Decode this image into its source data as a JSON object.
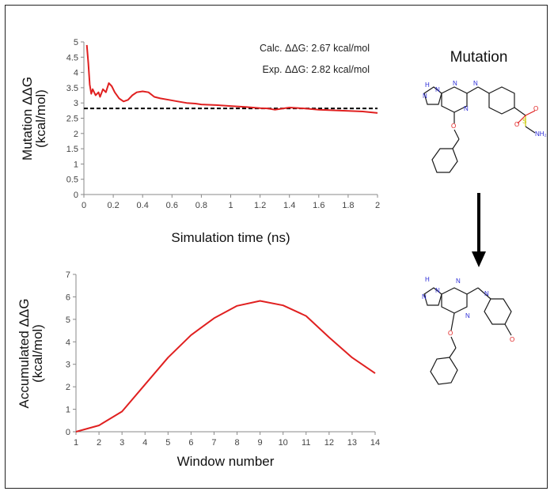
{
  "chart_data": [
    {
      "type": "line",
      "xlabel": "Simulation time (ns)",
      "ylabel": [
        "Mutation ΔΔG",
        "(kcal/mol)"
      ],
      "xlim": [
        0,
        2
      ],
      "ylim": [
        0,
        5
      ],
      "xticks": [
        "0",
        "0.2",
        "0.4",
        "0.6",
        "0.8",
        "1",
        "1.2",
        "1.4",
        "1.6",
        "1.8",
        "2"
      ],
      "yticks": [
        "0",
        "0.5",
        "1",
        "1.5",
        "2",
        "2.5",
        "3",
        "3.5",
        "4",
        "4.5",
        "5"
      ],
      "annotations": [
        "Calc. ΔΔG: 2.67 kcal/mol",
        "Exp. ΔΔG: 2.82 kcal/mol"
      ],
      "reference_line": {
        "y": 2.82,
        "style": "dashed",
        "color": "#000000"
      },
      "series": [
        {
          "color": "#e02020",
          "x": [
            0.02,
            0.03,
            0.04,
            0.05,
            0.06,
            0.08,
            0.1,
            0.11,
            0.13,
            0.15,
            0.17,
            0.19,
            0.21,
            0.24,
            0.27,
            0.3,
            0.33,
            0.36,
            0.4,
            0.44,
            0.48,
            0.52,
            0.58,
            0.64,
            0.7,
            0.76,
            0.8,
            0.9,
            1.0,
            1.1,
            1.2,
            1.25,
            1.3,
            1.4,
            1.5,
            1.6,
            1.7,
            1.8,
            1.9,
            2.0
          ],
          "y": [
            4.9,
            4.3,
            3.6,
            3.3,
            3.45,
            3.25,
            3.35,
            3.2,
            3.45,
            3.35,
            3.65,
            3.55,
            3.35,
            3.15,
            3.05,
            3.1,
            3.25,
            3.35,
            3.38,
            3.35,
            3.2,
            3.15,
            3.1,
            3.05,
            3.0,
            2.98,
            2.95,
            2.93,
            2.9,
            2.87,
            2.83,
            2.82,
            2.78,
            2.85,
            2.82,
            2.78,
            2.76,
            2.74,
            2.72,
            2.67
          ]
        }
      ]
    },
    {
      "type": "line",
      "xlabel": "Window number",
      "ylabel": [
        "Accumulated ΔΔG",
        "(kcal/mol)"
      ],
      "xlim": [
        1,
        14
      ],
      "ylim": [
        0,
        7
      ],
      "xticks": [
        "1",
        "2",
        "3",
        "4",
        "5",
        "6",
        "7",
        "8",
        "9",
        "10",
        "11",
        "12",
        "13",
        "14"
      ],
      "yticks": [
        "0",
        "1",
        "2",
        "3",
        "4",
        "5",
        "6",
        "7"
      ],
      "series": [
        {
          "color": "#e02020",
          "x": [
            1,
            2,
            3,
            4,
            5,
            6,
            7,
            8,
            9,
            10,
            11,
            12,
            13,
            14
          ],
          "y": [
            0.0,
            0.28,
            0.9,
            2.1,
            3.3,
            4.3,
            5.05,
            5.6,
            5.82,
            5.62,
            5.15,
            4.2,
            3.3,
            2.6
          ]
        }
      ]
    }
  ],
  "scheme": {
    "title": "Mutation",
    "arrow_color": "#000000"
  }
}
